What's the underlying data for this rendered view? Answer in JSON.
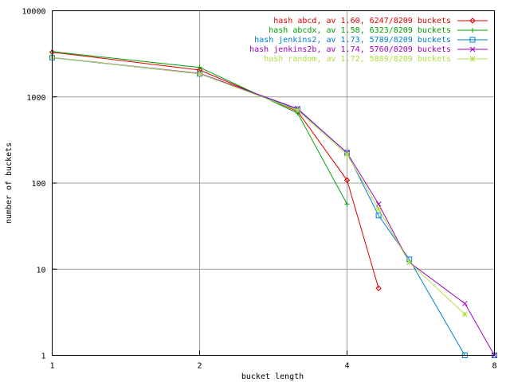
{
  "chart_data": {
    "type": "line",
    "title": "",
    "xlabel": "bucket length",
    "ylabel": "number of buckets",
    "xscale": "log2",
    "yscale": "log10",
    "xlim": [
      1,
      8
    ],
    "ylim": [
      1,
      10000
    ],
    "grid": true,
    "legend_position": "top-right",
    "xticks": [
      {
        "value": 1,
        "label": "1"
      },
      {
        "value": 2,
        "label": "2"
      },
      {
        "value": 4,
        "label": "4"
      },
      {
        "value": 8,
        "label": "8"
      }
    ],
    "yticks": [
      {
        "value": 1,
        "label": "1"
      },
      {
        "value": 10,
        "label": "10"
      },
      {
        "value": 100,
        "label": "100"
      },
      {
        "value": 1000,
        "label": "1000"
      },
      {
        "value": 10000,
        "label": "10000"
      }
    ],
    "series": [
      {
        "name": "hash abcd, av 1.60, 6247/8209 buckets",
        "color": "#e00000",
        "marker": "diamond",
        "points": [
          [
            1,
            3300
          ],
          [
            2,
            2050
          ],
          [
            3.17,
            680
          ],
          [
            4,
            108
          ],
          [
            4.64,
            6
          ]
        ]
      },
      {
        "name": "hash abcdx, av 1.58, 6323/8209 buckets",
        "color": "#00a000",
        "marker": "plus",
        "points": [
          [
            1,
            3350
          ],
          [
            2,
            2200
          ],
          [
            3.17,
            650
          ],
          [
            4,
            57
          ]
        ]
      },
      {
        "name": "hash jenkins2, av 1.73, 5789/8209 buckets",
        "color": "#0080d0",
        "marker": "square",
        "points": [
          [
            1,
            2850
          ],
          [
            2,
            1850
          ],
          [
            3.17,
            720
          ],
          [
            4,
            225
          ],
          [
            4.64,
            42
          ],
          [
            5.36,
            13
          ],
          [
            6.96,
            1
          ],
          [
            8,
            1
          ]
        ]
      },
      {
        "name": "hash jenkins2b, av 1.74, 5760/8209 buckets",
        "color": "#a000c0",
        "marker": "cross",
        "points": [
          [
            1,
            2870
          ],
          [
            2,
            1880
          ],
          [
            3.17,
            730
          ],
          [
            4,
            225
          ],
          [
            4.64,
            57
          ],
          [
            5.36,
            12
          ],
          [
            6.96,
            4
          ],
          [
            8,
            1
          ]
        ]
      },
      {
        "name": "hash random, av 1.72, 5889/8209 buckets",
        "color": "#b0e040",
        "marker": "star",
        "points": [
          [
            1,
            2860
          ],
          [
            2,
            1860
          ],
          [
            3.17,
            700
          ],
          [
            4,
            215
          ],
          [
            4.64,
            50
          ],
          [
            5.36,
            12
          ],
          [
            6.96,
            3
          ]
        ]
      }
    ]
  }
}
